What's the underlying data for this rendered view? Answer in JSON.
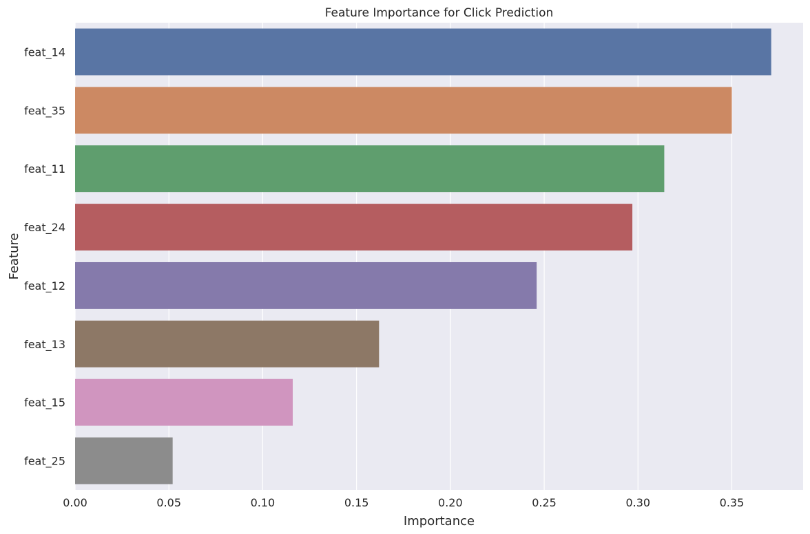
{
  "chart_data": {
    "type": "bar",
    "orientation": "horizontal",
    "title": "Feature Importance for Click Prediction",
    "xlabel": "Importance",
    "ylabel": "Feature",
    "categories": [
      "feat_14",
      "feat_35",
      "feat_11",
      "feat_24",
      "feat_12",
      "feat_13",
      "feat_15",
      "feat_25"
    ],
    "values": [
      0.371,
      0.35,
      0.314,
      0.297,
      0.246,
      0.162,
      0.116,
      0.052
    ],
    "colors": [
      "#5975a4",
      "#cc8963",
      "#5f9e6e",
      "#b55d60",
      "#857aab",
      "#8d7866",
      "#d095bf",
      "#8c8c8c"
    ],
    "xlim": [
      0,
      0.388
    ],
    "xticks": [
      0.0,
      0.05,
      0.1,
      0.15,
      0.2,
      0.25,
      0.3,
      0.35
    ],
    "xtick_labels": [
      "0.00",
      "0.05",
      "0.10",
      "0.15",
      "0.20",
      "0.25",
      "0.30",
      "0.35"
    ],
    "grid": true,
    "background": "#eaeaf2",
    "grid_color": "#ffffff"
  }
}
